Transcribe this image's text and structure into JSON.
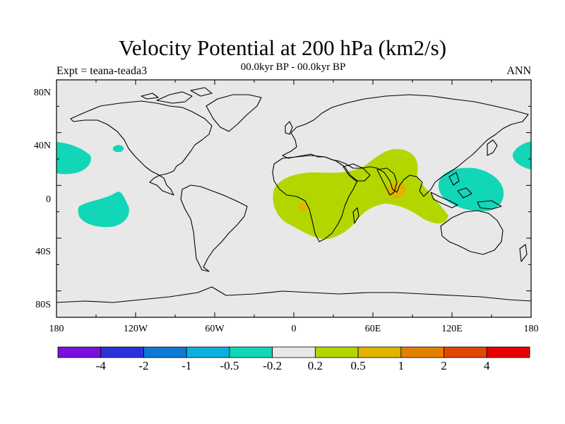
{
  "header": {
    "title": "Velocity Potential at 200 hPa (km2/s)",
    "experiment": "Expt = teana-teada3",
    "period": "00.0kyr BP - 00.0kyr BP",
    "season": "ANN"
  },
  "axes": {
    "lat_labels": [
      "80N",
      "40N",
      "0",
      "40S",
      "80S"
    ],
    "lon_labels": [
      "180",
      "120W",
      "60W",
      "0",
      "60E",
      "120E",
      "180"
    ]
  },
  "colorbar": {
    "colors": [
      "#7a10dc",
      "#2a33d8",
      "#0c7ad4",
      "#0cb0de",
      "#12d6b8",
      "#e8e8e8",
      "#b4d600",
      "#e0b400",
      "#e28000",
      "#e04800",
      "#e80000"
    ],
    "labels": [
      "-4",
      "-2",
      "-1",
      "-0.5",
      "-0.2",
      "0.2",
      "0.5",
      "1",
      "2",
      "4"
    ]
  },
  "map": {
    "background_color": "#e8e8e8",
    "coastline_color": "#000000",
    "lon_range": [
      -180,
      180
    ],
    "lat_range": [
      -90,
      90
    ]
  }
}
